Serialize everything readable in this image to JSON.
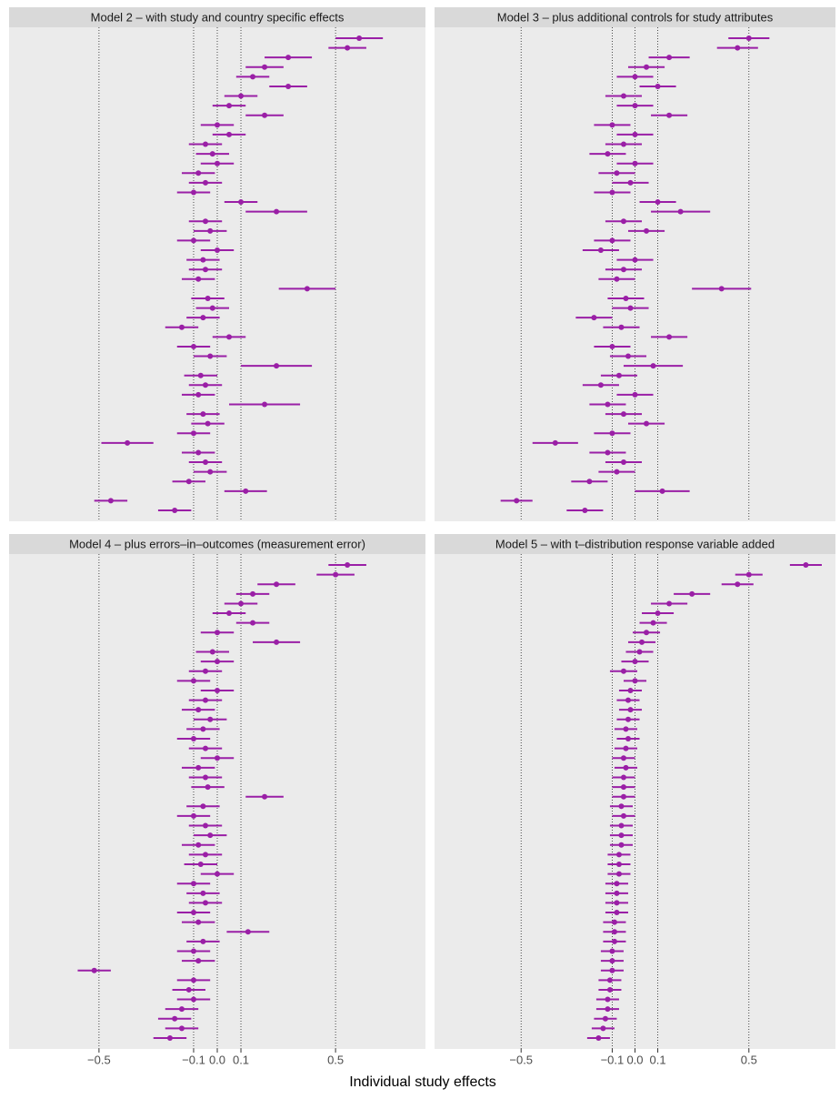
{
  "chart_data": [
    {
      "type": "errorbar",
      "title": "Model 2 – with study and country specific effects",
      "color": "#9a1fa6",
      "grid": true,
      "xlim": [
        -0.88,
        0.88
      ],
      "xticks": [
        -0.5,
        -0.1,
        0,
        0.1,
        0.5
      ],
      "values": [
        0.6,
        0.55,
        0.3,
        0.2,
        0.15,
        0.3,
        0.1,
        0.05,
        0.2,
        0.0,
        0.05,
        -0.05,
        -0.02,
        0.0,
        -0.08,
        -0.05,
        -0.1,
        0.1,
        0.25,
        -0.05,
        -0.03,
        -0.1,
        0.0,
        -0.06,
        -0.05,
        -0.08,
        0.38,
        -0.04,
        -0.02,
        -0.06,
        -0.15,
        0.05,
        -0.1,
        -0.03,
        0.25,
        -0.07,
        -0.05,
        -0.08,
        0.2,
        -0.06,
        -0.04,
        -0.1,
        -0.38,
        -0.08,
        -0.05,
        -0.03,
        -0.12,
        0.12,
        -0.45,
        -0.18
      ],
      "errors": [
        0.1,
        0.08,
        0.1,
        0.08,
        0.07,
        0.08,
        0.07,
        0.07,
        0.08,
        0.07,
        0.07,
        0.07,
        0.07,
        0.07,
        0.07,
        0.07,
        0.07,
        0.07,
        0.13,
        0.07,
        0.07,
        0.07,
        0.07,
        0.07,
        0.07,
        0.07,
        0.12,
        0.07,
        0.07,
        0.07,
        0.07,
        0.07,
        0.07,
        0.07,
        0.15,
        0.07,
        0.07,
        0.07,
        0.15,
        0.07,
        0.07,
        0.07,
        0.11,
        0.07,
        0.07,
        0.07,
        0.07,
        0.09,
        0.07,
        0.07
      ]
    },
    {
      "type": "errorbar",
      "title": "Model 3 – plus additional controls for study attributes",
      "color": "#9a1fa6",
      "grid": true,
      "xlim": [
        -0.88,
        0.88
      ],
      "xticks": [
        -0.5,
        -0.1,
        0,
        0.1,
        0.5
      ],
      "values": [
        0.5,
        0.45,
        0.15,
        0.05,
        0.0,
        0.1,
        -0.05,
        0.0,
        0.15,
        -0.1,
        0.0,
        -0.05,
        -0.12,
        0.0,
        -0.08,
        -0.02,
        -0.1,
        0.1,
        0.2,
        -0.05,
        0.05,
        -0.1,
        -0.15,
        0.0,
        -0.05,
        -0.08,
        0.38,
        -0.04,
        -0.02,
        -0.18,
        -0.06,
        0.15,
        -0.1,
        -0.03,
        0.08,
        -0.07,
        -0.15,
        0.0,
        -0.12,
        -0.05,
        0.05,
        -0.1,
        -0.35,
        -0.12,
        -0.05,
        -0.08,
        -0.2,
        0.12,
        -0.52,
        -0.22
      ],
      "errors": [
        0.09,
        0.09,
        0.09,
        0.08,
        0.08,
        0.08,
        0.08,
        0.08,
        0.08,
        0.08,
        0.08,
        0.08,
        0.08,
        0.08,
        0.08,
        0.08,
        0.08,
        0.08,
        0.13,
        0.08,
        0.08,
        0.08,
        0.08,
        0.08,
        0.08,
        0.08,
        0.13,
        0.08,
        0.08,
        0.08,
        0.08,
        0.08,
        0.08,
        0.08,
        0.13,
        0.08,
        0.08,
        0.08,
        0.08,
        0.08,
        0.08,
        0.08,
        0.1,
        0.08,
        0.08,
        0.08,
        0.08,
        0.12,
        0.07,
        0.08
      ]
    },
    {
      "type": "errorbar",
      "title": "Model 4 – plus errors–in–outcomes (measurement error)",
      "color": "#9a1fa6",
      "grid": true,
      "xlim": [
        -0.88,
        0.88
      ],
      "xticks": [
        {
          "value": -0.5,
          "label": "−0.5"
        },
        {
          "value": -0.1,
          "label": "−0.1"
        },
        {
          "value": 0,
          "label": "0.0"
        },
        0.1,
        0.5
      ],
      "values": [
        0.55,
        0.5,
        0.25,
        0.15,
        0.1,
        0.05,
        0.15,
        0.0,
        0.25,
        -0.02,
        0.0,
        -0.05,
        -0.1,
        0.0,
        -0.05,
        -0.08,
        -0.03,
        -0.06,
        -0.1,
        -0.05,
        0.0,
        -0.08,
        -0.05,
        -0.04,
        0.2,
        -0.06,
        -0.1,
        -0.05,
        -0.03,
        -0.08,
        -0.05,
        -0.07,
        0.0,
        -0.1,
        -0.06,
        -0.05,
        -0.1,
        -0.08,
        0.13,
        -0.06,
        -0.1,
        -0.08,
        -0.52,
        -0.1,
        -0.12,
        -0.1,
        -0.15,
        -0.18,
        -0.15,
        -0.2
      ],
      "errors": [
        0.08,
        0.08,
        0.08,
        0.07,
        0.07,
        0.07,
        0.07,
        0.07,
        0.1,
        0.07,
        0.07,
        0.07,
        0.07,
        0.07,
        0.07,
        0.07,
        0.07,
        0.07,
        0.07,
        0.07,
        0.07,
        0.07,
        0.07,
        0.07,
        0.08,
        0.07,
        0.07,
        0.07,
        0.07,
        0.07,
        0.07,
        0.07,
        0.07,
        0.07,
        0.07,
        0.07,
        0.07,
        0.07,
        0.09,
        0.07,
        0.07,
        0.07,
        0.07,
        0.07,
        0.07,
        0.07,
        0.07,
        0.07,
        0.07,
        0.07
      ]
    },
    {
      "type": "errorbar",
      "title": "Model 5 – with t–distribution response variable added",
      "color": "#9a1fa6",
      "grid": true,
      "xlim": [
        -0.88,
        0.88
      ],
      "xticks": [
        {
          "value": -0.5,
          "label": "−0.5"
        },
        {
          "value": -0.1,
          "label": "−0.1"
        },
        {
          "value": 0,
          "label": "0.0"
        },
        0.1,
        0.5
      ],
      "values": [
        0.75,
        0.5,
        0.45,
        0.25,
        0.15,
        0.1,
        0.08,
        0.05,
        0.03,
        0.02,
        0.0,
        -0.05,
        0.0,
        -0.02,
        -0.03,
        -0.02,
        -0.03,
        -0.04,
        -0.03,
        -0.04,
        -0.05,
        -0.04,
        -0.05,
        -0.05,
        -0.05,
        -0.06,
        -0.05,
        -0.06,
        -0.06,
        -0.06,
        -0.07,
        -0.07,
        -0.07,
        -0.08,
        -0.08,
        -0.08,
        -0.08,
        -0.09,
        -0.09,
        -0.09,
        -0.1,
        -0.1,
        -0.1,
        -0.11,
        -0.11,
        -0.12,
        -0.12,
        -0.13,
        -0.14,
        -0.16
      ],
      "errors": [
        0.07,
        0.06,
        0.07,
        0.08,
        0.08,
        0.07,
        0.06,
        0.06,
        0.06,
        0.06,
        0.06,
        0.06,
        0.05,
        0.05,
        0.05,
        0.05,
        0.05,
        0.05,
        0.05,
        0.05,
        0.05,
        0.05,
        0.05,
        0.05,
        0.05,
        0.05,
        0.05,
        0.05,
        0.05,
        0.05,
        0.05,
        0.05,
        0.05,
        0.05,
        0.05,
        0.05,
        0.05,
        0.05,
        0.05,
        0.05,
        0.05,
        0.05,
        0.05,
        0.05,
        0.05,
        0.05,
        0.05,
        0.05,
        0.05,
        0.05
      ]
    }
  ],
  "x_label": "Individual study effects"
}
